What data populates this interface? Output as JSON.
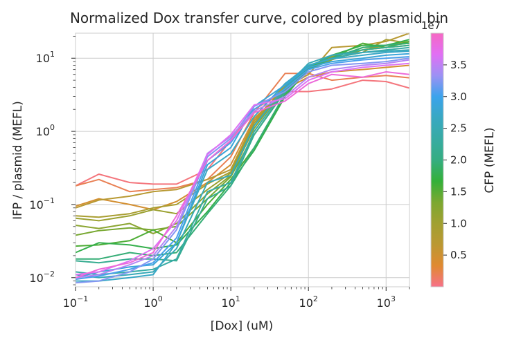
{
  "chart_data": {
    "type": "line",
    "title": "Normalized Dox transfer curve, colored by plasmid bin",
    "xlabel": "[Dox] (uM)",
    "ylabel": "IFP / plasmid (MEFL)",
    "xscale": "log",
    "yscale": "log",
    "xlim": [
      0.1,
      2000
    ],
    "ylim": [
      0.0075,
      22
    ],
    "grid": true,
    "x_ticks": [
      {
        "value": 0.1,
        "base": "10",
        "exp": "−1"
      },
      {
        "value": 1,
        "base": "10",
        "exp": "0"
      },
      {
        "value": 10,
        "base": "10",
        "exp": "1"
      },
      {
        "value": 100,
        "base": "10",
        "exp": "2"
      },
      {
        "value": 1000,
        "base": "10",
        "exp": "3"
      }
    ],
    "y_ticks": [
      {
        "value": 0.01,
        "base": "10",
        "exp": "−2"
      },
      {
        "value": 0.1,
        "base": "10",
        "exp": "−1"
      },
      {
        "value": 1,
        "base": "10",
        "exp": "0"
      },
      {
        "value": 10,
        "base": "10",
        "exp": "1"
      }
    ],
    "x": [
      0.1,
      0.2,
      0.5,
      1,
      2,
      5,
      10,
      20,
      50,
      100,
      200,
      500,
      1000,
      2000
    ],
    "colorbar": {
      "label": "CFP (MEFL)",
      "offset_text": "1e7",
      "ticks": [
        "0.5",
        "1.0",
        "1.5",
        "2.0",
        "2.5",
        "3.0",
        "3.5"
      ],
      "tick_values": [
        0.5,
        1.0,
        1.5,
        2.0,
        2.5,
        3.0,
        3.5
      ],
      "range": [
        0.0,
        4.0
      ],
      "stops": [
        "#f77189",
        "#e08a31",
        "#bb9832",
        "#a1a031",
        "#7ca831",
        "#33b039",
        "#35ad81",
        "#37aba3",
        "#39a8c2",
        "#3ba3ec",
        "#9c91f4",
        "#e16ff4",
        "#f668c3"
      ]
    },
    "series": [
      {
        "cfp": 0.05,
        "values": [
          0.18,
          0.26,
          0.2,
          0.19,
          0.19,
          0.3,
          0.75,
          2.0,
          3.5,
          3.5,
          3.8,
          5.0,
          4.8,
          3.9
        ]
      },
      {
        "cfp": 0.2,
        "values": [
          0.18,
          0.22,
          0.15,
          0.16,
          0.17,
          0.22,
          0.45,
          1.8,
          6.2,
          6.2,
          5.0,
          5.5,
          5.8,
          5.4
        ]
      },
      {
        "cfp": 0.45,
        "values": [
          0.095,
          0.12,
          0.1,
          0.085,
          0.11,
          0.2,
          0.35,
          1.5,
          3.8,
          5.5,
          6.5,
          7.0,
          7.5,
          8.0
        ]
      },
      {
        "cfp": 0.7,
        "values": [
          0.09,
          0.115,
          0.13,
          0.15,
          0.16,
          0.22,
          0.3,
          1.4,
          4.0,
          6.0,
          14,
          15,
          17,
          22
        ]
      },
      {
        "cfp": 0.9,
        "values": [
          0.07,
          0.067,
          0.075,
          0.09,
          0.1,
          0.19,
          0.28,
          1.3,
          4.2,
          7.0,
          10,
          12,
          18,
          16
        ]
      },
      {
        "cfp": 1.05,
        "values": [
          0.065,
          0.06,
          0.07,
          0.085,
          0.075,
          0.16,
          0.27,
          1.2,
          4.5,
          7.5,
          10.5,
          13,
          15,
          17
        ]
      },
      {
        "cfp": 1.2,
        "values": [
          0.052,
          0.047,
          0.055,
          0.04,
          0.055,
          0.14,
          0.25,
          1.1,
          4.0,
          7.0,
          9.5,
          13,
          14,
          15
        ]
      },
      {
        "cfp": 1.35,
        "values": [
          0.038,
          0.044,
          0.048,
          0.045,
          0.05,
          0.12,
          0.24,
          0.9,
          3.6,
          7.2,
          10,
          14,
          15,
          16
        ]
      },
      {
        "cfp": 1.55,
        "values": [
          0.027,
          0.028,
          0.032,
          0.045,
          0.03,
          0.1,
          0.22,
          0.6,
          3.2,
          7.4,
          10,
          16,
          14,
          17
        ]
      },
      {
        "cfp": 1.75,
        "values": [
          0.022,
          0.03,
          0.028,
          0.025,
          0.028,
          0.08,
          0.2,
          0.55,
          3.0,
          7.3,
          11,
          15,
          15,
          18
        ]
      },
      {
        "cfp": 1.95,
        "values": [
          0.018,
          0.018,
          0.022,
          0.02,
          0.022,
          0.075,
          0.18,
          0.6,
          3.3,
          7.0,
          10,
          14,
          15,
          16
        ]
      },
      {
        "cfp": 2.15,
        "values": [
          0.017,
          0.016,
          0.018,
          0.018,
          0.017,
          0.12,
          0.18,
          0.9,
          3.5,
          7.6,
          11,
          13,
          14,
          15
        ]
      },
      {
        "cfp": 2.35,
        "values": [
          0.012,
          0.011,
          0.012,
          0.013,
          0.018,
          0.15,
          0.2,
          1.0,
          3.8,
          8.0,
          10,
          12,
          13,
          14
        ]
      },
      {
        "cfp": 2.55,
        "values": [
          0.011,
          0.01,
          0.011,
          0.012,
          0.025,
          0.2,
          0.25,
          1.2,
          4.0,
          8.5,
          11,
          12,
          12.5,
          13
        ]
      },
      {
        "cfp": 2.7,
        "values": [
          0.009,
          0.009,
          0.01,
          0.011,
          0.03,
          0.3,
          0.5,
          1.6,
          4.5,
          8.0,
          9.8,
          11,
          12,
          12.5
        ]
      },
      {
        "cfp": 2.85,
        "values": [
          0.01,
          0.012,
          0.014,
          0.015,
          0.03,
          0.35,
          0.6,
          2.2,
          4.3,
          7.5,
          9.0,
          10,
          11,
          11.5
        ]
      },
      {
        "cfp": 3.05,
        "values": [
          0.0095,
          0.0105,
          0.013,
          0.016,
          0.035,
          0.4,
          0.7,
          2.0,
          3.8,
          7.0,
          8.5,
          9.5,
          10,
          10.5
        ]
      },
      {
        "cfp": 3.25,
        "values": [
          0.0085,
          0.009,
          0.012,
          0.018,
          0.045,
          0.45,
          0.8,
          2.2,
          3.5,
          6.5,
          8.0,
          8.5,
          9.0,
          10
        ]
      },
      {
        "cfp": 3.45,
        "values": [
          0.01,
          0.011,
          0.015,
          0.02,
          0.05,
          0.5,
          0.85,
          1.9,
          3.0,
          5.5,
          7.0,
          8.0,
          8.5,
          9.5
        ]
      },
      {
        "cfp": 3.65,
        "values": [
          0.011,
          0.012,
          0.017,
          0.025,
          0.06,
          0.48,
          0.9,
          2.3,
          2.8,
          5.0,
          6.5,
          7.5,
          8.0,
          8.5
        ]
      },
      {
        "cfp": 3.85,
        "values": [
          0.01,
          0.013,
          0.016,
          0.022,
          0.07,
          0.4,
          0.75,
          1.8,
          2.6,
          4.5,
          6.0,
          5.5,
          6.5,
          6.0
        ]
      }
    ]
  }
}
